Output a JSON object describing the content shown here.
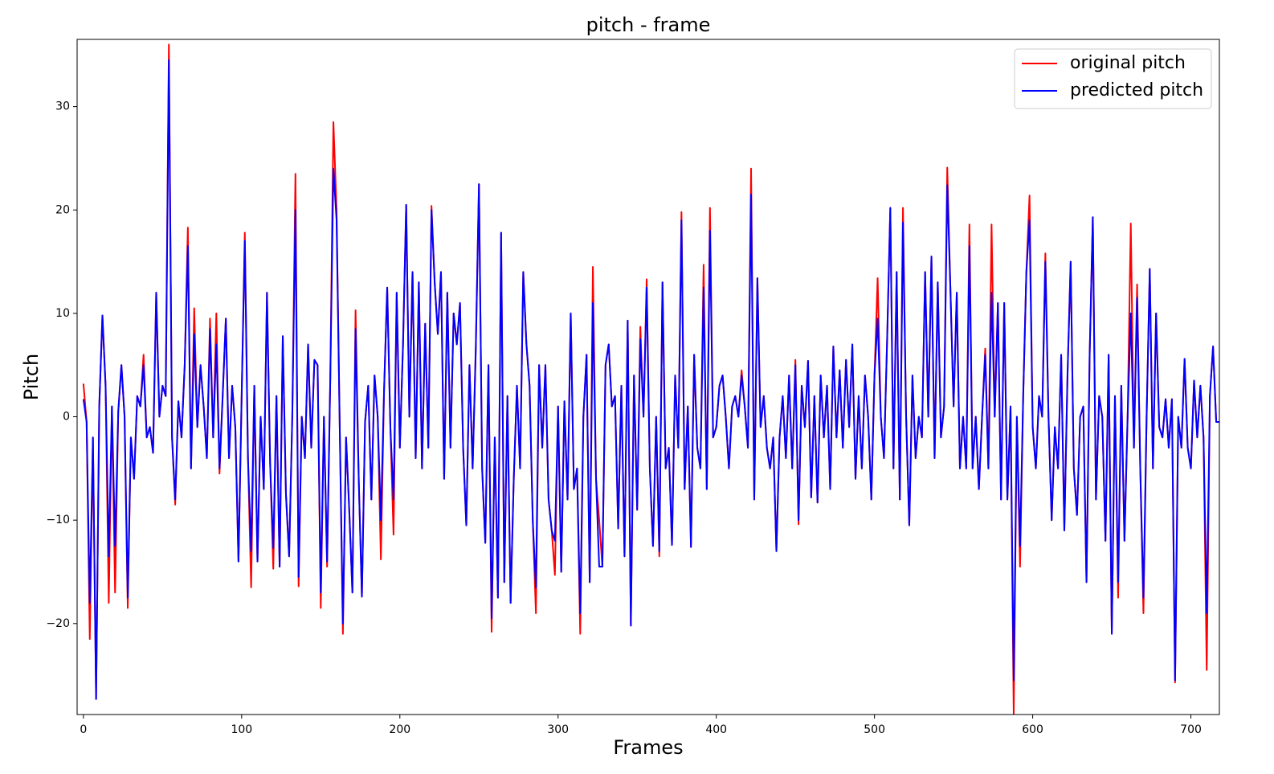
{
  "chart_data": {
    "type": "line",
    "title": "pitch - frame",
    "x_label": "Frames",
    "y_label": "Pitch",
    "x": [
      0,
      2,
      4,
      6,
      8,
      10,
      12,
      14,
      16,
      18,
      20,
      22,
      24,
      26,
      28,
      30,
      32,
      34,
      36,
      38,
      40,
      42,
      44,
      46,
      48,
      50,
      52,
      54,
      56,
      58,
      60,
      62,
      64,
      66,
      68,
      70,
      72,
      74,
      76,
      78,
      80,
      82,
      84,
      86,
      88,
      90,
      92,
      94,
      96,
      98,
      100,
      102,
      104,
      106,
      108,
      110,
      112,
      114,
      116,
      118,
      120,
      122,
      124,
      126,
      128,
      130,
      132,
      134,
      136,
      138,
      140,
      142,
      144,
      146,
      148,
      150,
      152,
      154,
      156,
      158,
      160,
      162,
      164,
      166,
      168,
      170,
      172,
      174,
      176,
      178,
      180,
      182,
      184,
      186,
      188,
      190,
      192,
      194,
      196,
      198,
      200,
      202,
      204,
      206,
      208,
      210,
      212,
      214,
      216,
      218,
      220,
      222,
      224,
      226,
      228,
      230,
      232,
      234,
      236,
      238,
      240,
      242,
      244,
      246,
      248,
      250,
      252,
      254,
      256,
      258,
      260,
      262,
      264,
      266,
      268,
      270,
      272,
      274,
      276,
      278,
      280,
      282,
      284,
      286,
      288,
      290,
      292,
      294,
      296,
      298,
      300,
      302,
      304,
      306,
      308,
      310,
      312,
      314,
      316,
      318,
      320,
      322,
      324,
      326,
      328,
      330,
      332,
      334,
      336,
      338,
      340,
      342,
      344,
      346,
      348,
      350,
      352,
      354,
      356,
      358,
      360,
      362,
      364,
      366,
      368,
      370,
      372,
      374,
      376,
      378,
      380,
      382,
      384,
      386,
      388,
      390,
      392,
      394,
      396,
      398,
      400,
      402,
      404,
      406,
      408,
      410,
      412,
      414,
      416,
      418,
      420,
      422,
      424,
      426,
      428,
      430,
      432,
      434,
      436,
      438,
      440,
      442,
      444,
      446,
      448,
      450,
      452,
      454,
      456,
      458,
      460,
      462,
      464,
      466,
      468,
      470,
      472,
      474,
      476,
      478,
      480,
      482,
      484,
      486,
      488,
      490,
      492,
      494,
      496,
      498,
      500,
      502,
      504,
      506,
      508,
      510,
      512,
      514,
      516,
      518,
      520,
      522,
      524,
      526,
      528,
      530,
      532,
      534,
      536,
      538,
      540,
      542,
      544,
      546,
      548,
      550,
      552,
      554,
      556,
      558,
      560,
      562,
      564,
      566,
      568,
      570,
      572,
      574,
      576,
      578,
      580,
      582,
      584,
      586,
      588,
      590,
      592,
      594,
      596,
      598,
      600,
      602,
      604,
      606,
      608,
      610,
      612,
      614,
      616,
      618,
      620,
      622,
      624,
      626,
      628,
      630,
      632,
      634,
      636,
      638,
      640,
      642,
      644,
      646,
      648,
      650,
      652,
      654,
      656,
      658,
      660,
      662,
      664,
      666,
      668,
      670,
      672,
      674,
      676,
      678,
      680,
      682,
      684,
      686,
      688,
      690,
      692,
      694,
      696,
      698,
      700,
      702,
      704,
      706,
      708,
      710,
      712,
      714,
      716,
      718
    ],
    "series": [
      {
        "name": "original pitch",
        "color": "#ff0000",
        "values": [
          3.2,
          -0.5,
          -21.5,
          -2,
          -27.3,
          1,
          9.8,
          3,
          -18,
          1,
          -17,
          0.5,
          5,
          0,
          -18.5,
          -2,
          -6,
          2,
          1,
          6,
          -2,
          -1,
          -3.5,
          12,
          0,
          3,
          2,
          36,
          -2,
          -8.5,
          1.5,
          -2,
          5,
          18.3,
          -5,
          10.5,
          -1,
          5,
          1,
          -4,
          9.5,
          -2,
          10,
          -5.5,
          2,
          9.5,
          -4,
          3,
          -1,
          -14,
          2,
          17.8,
          -4,
          -16.5,
          3,
          -14,
          0,
          -7,
          12,
          -4.5,
          -14.7,
          2,
          -14.5,
          7.8,
          -7.5,
          -13.5,
          0,
          23.5,
          -16.4,
          0,
          -4,
          7,
          -3,
          5.5,
          5,
          -18.5,
          0,
          -14.5,
          3.5,
          28.5,
          20,
          -1,
          -21,
          -2,
          -9,
          -17,
          10.3,
          -6,
          -17.4,
          -0.5,
          3,
          -8,
          4,
          0,
          -13.8,
          2.5,
          12.5,
          -1,
          -11.4,
          12,
          -3,
          7,
          20.5,
          0,
          14,
          -4,
          13,
          -5,
          9,
          -3,
          20.4,
          13,
          8,
          14,
          -6,
          12,
          -3,
          10,
          7,
          11,
          -3,
          -10.5,
          5,
          -5,
          6.8,
          22.5,
          -5,
          -12.2,
          5,
          -20.8,
          -2,
          -17.5,
          17.8,
          -16,
          2,
          -18,
          -6,
          3,
          -5,
          14,
          7,
          3,
          -10,
          -19,
          5,
          -3,
          5,
          -8,
          -11,
          -15.3,
          1,
          -15,
          1.5,
          -8,
          10,
          -7,
          -5,
          -21,
          0,
          6,
          -16,
          14.5,
          -6,
          -10,
          -14.5,
          5,
          7,
          1,
          2,
          -10.8,
          3,
          -13.5,
          9.3,
          -20.2,
          4,
          -9,
          8.7,
          0,
          13.3,
          -5,
          -12.5,
          0,
          -13.5,
          13,
          -5,
          -3,
          -12.4,
          4,
          -3,
          19.8,
          -7,
          1,
          -12.6,
          6,
          -3,
          -5,
          14.7,
          -7,
          20.2,
          -2,
          -1,
          3,
          4,
          0,
          -5,
          1,
          2,
          0,
          4.5,
          1,
          -3,
          24,
          -8,
          13.4,
          -1,
          2,
          -3,
          -5,
          -2,
          -13,
          -2,
          2,
          -4,
          4,
          -5,
          5.5,
          -10.4,
          3,
          -1,
          5.4,
          -7.8,
          2,
          -8.3,
          4,
          -2,
          3,
          -7,
          6.8,
          -2,
          4.5,
          -3,
          5.5,
          -1,
          7,
          -6,
          2,
          -5,
          4,
          0,
          -8,
          4,
          13.4,
          0,
          -4,
          7.5,
          20.2,
          -5,
          14,
          -8,
          20.2,
          0,
          -10.5,
          4,
          -4,
          0,
          -2,
          14,
          0,
          15.5,
          -4,
          13,
          -2,
          1,
          24.1,
          12.3,
          1,
          12,
          -5,
          0,
          -5,
          18.6,
          -5,
          0,
          -7,
          0,
          6.6,
          -5,
          18.6,
          0,
          11,
          -8,
          11,
          -8,
          1,
          -28.8,
          0,
          -14.5,
          2,
          14,
          21.4,
          -1,
          -5,
          2,
          0,
          15.8,
          0,
          -10,
          -1,
          -5,
          6,
          -11,
          4,
          15,
          -5,
          -9.5,
          0,
          1,
          -16,
          6,
          19.3,
          -8,
          2,
          0,
          -12,
          6,
          -21,
          2,
          -17.5,
          3,
          -12,
          0,
          18.7,
          -3,
          12.8,
          -5,
          -19,
          0,
          14.3,
          -5,
          10,
          -1,
          -2,
          1.7,
          -3,
          1.7,
          -25.7,
          0,
          -3,
          5.6,
          -3,
          -5,
          3.5,
          -2,
          3,
          -2,
          -24.5,
          2,
          6.8,
          -0.5,
          -0.5
        ]
      },
      {
        "name": "predicted pitch",
        "color": "#0000ff",
        "values": [
          1.7,
          -0.5,
          -18,
          -2,
          -27.3,
          1,
          9.8,
          3,
          -13.5,
          1,
          -12.5,
          0.5,
          5,
          0,
          -17.5,
          -2,
          -6,
          2,
          1,
          5,
          -2,
          -1,
          -3.5,
          12,
          0,
          3,
          2,
          34.5,
          -2,
          -8,
          1.5,
          -2,
          5,
          16.5,
          -5,
          8,
          -1,
          5,
          1,
          -4,
          8.5,
          -2,
          7,
          -5,
          2,
          9.5,
          -4,
          3,
          -1,
          -14,
          2,
          17,
          -4,
          -13,
          3,
          -14,
          0,
          -7,
          12,
          -4.5,
          -12.7,
          2,
          -14.5,
          7.8,
          -7.5,
          -13.5,
          0,
          20,
          -15.5,
          0,
          -4,
          7,
          -3,
          5.5,
          5,
          -17,
          0,
          -14,
          3.5,
          24,
          19,
          -1,
          -20,
          -2,
          -9,
          -17,
          8.5,
          -6,
          -17.4,
          -0.5,
          3,
          -8,
          4,
          0,
          -10,
          2.5,
          12.5,
          -1,
          -8,
          12,
          -3,
          7,
          20.5,
          0,
          14,
          -4,
          13,
          -5,
          9,
          -3,
          20,
          13,
          8,
          14,
          -6,
          12,
          -3,
          10,
          7,
          11,
          -3,
          -10.5,
          5,
          -5,
          6.5,
          22.5,
          -5,
          -12.2,
          5,
          -19.5,
          -2,
          -17.5,
          17.8,
          -16,
          2,
          -18,
          -6,
          3,
          -5,
          14,
          7,
          3,
          -10,
          -16.5,
          5,
          -3,
          5,
          -8,
          -11,
          -12,
          1,
          -15,
          1.5,
          -8,
          10,
          -7,
          -5,
          -19,
          0,
          6,
          -16,
          11,
          -6,
          -14.5,
          -14.5,
          5,
          7,
          1,
          2,
          -10.8,
          3,
          -13.5,
          9.3,
          -20.2,
          4,
          -9,
          7.5,
          0,
          12.5,
          -5,
          -12.5,
          0,
          -13,
          13,
          -5,
          -3,
          -12.4,
          4,
          -3,
          19,
          -7,
          1,
          -12.6,
          6,
          -3,
          -5,
          12.5,
          -7,
          18,
          -2,
          -1,
          3,
          4,
          0,
          -5,
          1,
          2,
          0,
          4,
          1,
          -3,
          21.5,
          -8,
          13.4,
          -1,
          2,
          -3,
          -5,
          -2,
          -13,
          -2,
          2,
          -4,
          4,
          -5,
          5,
          -10,
          3,
          -1,
          5.4,
          -7.8,
          2,
          -8.3,
          4,
          -2,
          3,
          -7,
          6.8,
          -2,
          4.5,
          -3,
          5.5,
          -1,
          7,
          -6,
          2,
          -5,
          4,
          0,
          -8,
          4,
          9.5,
          0,
          -4,
          7.5,
          20.2,
          -5,
          14,
          -8,
          18.8,
          0,
          -10.5,
          4,
          -4,
          0,
          -2,
          14,
          0,
          15.5,
          -4,
          13,
          -2,
          1,
          22.4,
          12.3,
          1,
          12,
          -5,
          0,
          -5,
          16.5,
          -5,
          0,
          -7,
          0,
          6,
          -5,
          12,
          0,
          11,
          -8,
          11,
          -8,
          1,
          -25.5,
          0,
          -12.5,
          2,
          14,
          19,
          -1,
          -5,
          2,
          0,
          15,
          0,
          -10,
          -1,
          -5,
          6,
          -11,
          4,
          15,
          -5,
          -9.5,
          0,
          1,
          -16,
          6,
          19.3,
          -8,
          2,
          0,
          -12,
          6,
          -21,
          2,
          -16,
          3,
          -12,
          0,
          10,
          -3,
          11.5,
          -5,
          -17.5,
          0,
          14.3,
          -5,
          10,
          -1,
          -2,
          1.7,
          -3,
          1.7,
          -25.5,
          0,
          -3,
          5.6,
          -3,
          -5,
          3.5,
          -2,
          3,
          -2,
          -19,
          2,
          6.8,
          -0.5,
          -0.5
        ]
      }
    ],
    "xlim": [
      -4,
      718
    ],
    "ylim": [
      -28.8,
      36.5
    ],
    "xticks": [
      0,
      100,
      200,
      300,
      400,
      500,
      600,
      700
    ],
    "yticks": [
      {
        "value": -20,
        "label": "−20"
      },
      {
        "value": -10,
        "label": "−10"
      },
      0,
      10,
      20,
      30
    ],
    "legend": "upper right",
    "grid": false
  }
}
